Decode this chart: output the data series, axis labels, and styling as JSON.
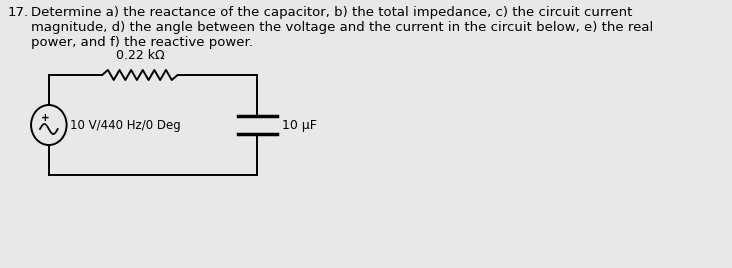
{
  "title_number": "17.",
  "problem_text_line1": "Determine a) the reactance of the capacitor, b) the total impedance, c) the circuit current",
  "problem_text_line2": "magnitude, d) the angle between the voltage and the current in the circuit below, e) the real",
  "problem_text_line3": "power, and f) the reactive power.",
  "resistor_label": "0.22 kΩ",
  "source_label": "10 V/440 Hz/0 Deg",
  "capacitor_label": "10 μF",
  "background_color": "#e8e8e8",
  "circuit_color": "#000000",
  "text_color": "#000000",
  "font_size_problem": 9.5,
  "font_size_labels": 9.0
}
